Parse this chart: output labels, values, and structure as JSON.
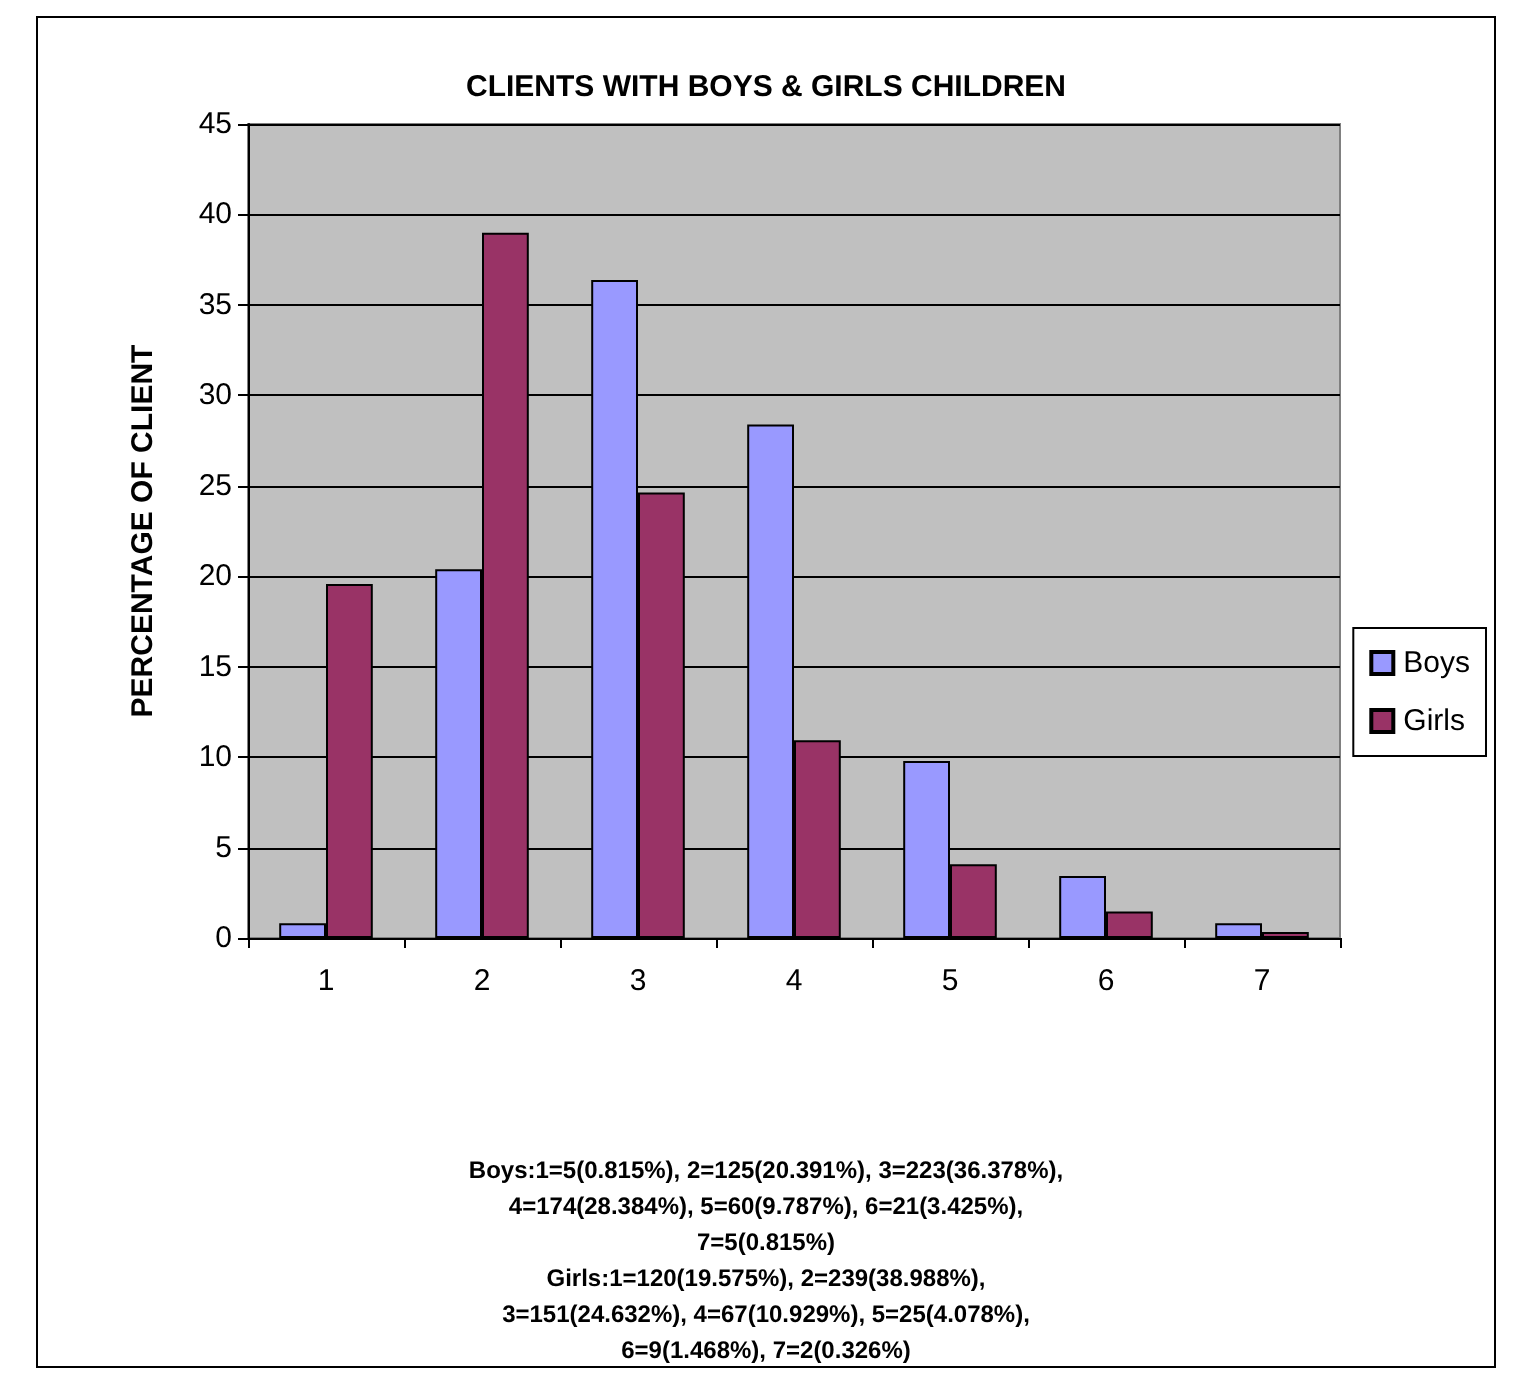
{
  "chart_data": {
    "type": "bar",
    "title": "CLIENTS WITH BOYS & GIRLS CHILDREN",
    "ylabel": "PERCENTAGE OF CLIENT",
    "categories": [
      "1",
      "2",
      "3",
      "4",
      "5",
      "6",
      "7"
    ],
    "series": [
      {
        "name": "Boys",
        "color": "#9999ff",
        "values": [
          0.815,
          20.391,
          36.378,
          28.384,
          9.787,
          3.425,
          0.815
        ]
      },
      {
        "name": "Girls",
        "color": "#993366",
        "values": [
          19.575,
          38.988,
          24.632,
          10.929,
          4.078,
          1.468,
          0.326
        ]
      }
    ],
    "ylim": [
      0,
      45
    ],
    "yticks": [
      0,
      5,
      10,
      15,
      20,
      25,
      30,
      35,
      40,
      45
    ],
    "grid": "y",
    "legend": "right",
    "annotations": [
      "Boys:1=5(0.815%), 2=125(20.391%), 3=223(36.378%),",
      "4=174(28.384%), 5=60(9.787%), 6=21(3.425%),",
      "7=5(0.815%)",
      "Girls:1=120(19.575%), 2=239(38.988%),",
      "3=151(24.632%), 4=67(10.929%), 5=25(4.078%),",
      "6=9(1.468%), 7=2(0.326%)"
    ]
  }
}
